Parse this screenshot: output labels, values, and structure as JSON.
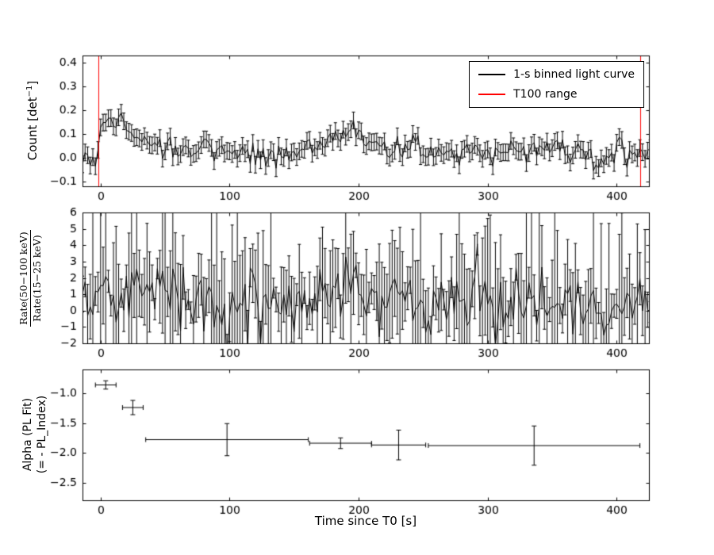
{
  "figure": {
    "background": "#ffffff",
    "frame_color": "#000000",
    "xlabel": "Time since T0 [s]",
    "xlim": [
      -14,
      425
    ],
    "xticks": [
      0,
      100,
      200,
      300,
      400
    ]
  },
  "legend": {
    "position": "upper right",
    "entries": [
      {
        "label": "1-s binned light curve",
        "color": "#000000"
      },
      {
        "label": "T100 range",
        "color": "#ff0000"
      }
    ]
  },
  "chart_data": [
    {
      "type": "line",
      "name": "light-curve",
      "ylabel_parts": [
        "Count [det",
        "−1",
        "]"
      ],
      "ylim": [
        -0.12,
        0.43
      ],
      "yticks": [
        -0.1,
        0.0,
        0.1,
        0.2,
        0.3,
        0.4
      ],
      "ytick_decimals": 1,
      "color": "#000000",
      "t100_range": [
        -2,
        418
      ],
      "t100_color": "#ff0000",
      "sample_step_s": 2,
      "x_range": [
        -16,
        428
      ],
      "yerr": 0.035,
      "noise_sigma": 0.025,
      "seed": 42,
      "trend": {
        "x": [
          -16,
          -4,
          -1,
          0,
          2,
          5,
          8,
          11,
          14,
          18,
          22,
          27,
          33,
          40,
          50,
          60,
          70,
          80,
          90,
          100,
          115,
          130,
          145,
          155,
          162,
          170,
          178,
          185,
          192,
          200,
          208,
          216,
          225,
          240,
          255,
          270,
          285,
          300,
          315,
          330,
          342,
          350,
          358,
          368,
          380,
          395,
          410,
          420,
          428
        ],
        "y": [
          0.0,
          0.0,
          0.02,
          0.1,
          0.15,
          0.16,
          0.14,
          0.16,
          0.17,
          0.13,
          0.11,
          0.09,
          0.08,
          0.06,
          0.04,
          0.03,
          0.04,
          0.05,
          0.04,
          0.02,
          0.015,
          0.01,
          0.015,
          0.03,
          0.05,
          0.06,
          0.08,
          0.09,
          0.1,
          0.09,
          0.07,
          0.06,
          0.05,
          0.04,
          0.03,
          0.03,
          0.025,
          0.02,
          0.02,
          0.02,
          0.04,
          0.05,
          0.03,
          0.02,
          0.015,
          0.02,
          0.03,
          0.02,
          0.01
        ]
      }
    },
    {
      "type": "line",
      "name": "hardness-ratio",
      "ylabel_numerator": "Rate(50−100 keV)",
      "ylabel_denominator": "Rate(15−25 keV)",
      "ylim": [
        -2,
        6
      ],
      "yticks": [
        -2,
        -1,
        0,
        1,
        2,
        3,
        4,
        5,
        6
      ],
      "ytick_decimals": 0,
      "color": "#000000",
      "sample_step_s": 2,
      "x_range": [
        -16,
        428
      ],
      "noise_sigma_base": 0.5,
      "noise_sigma_spread": 1.0,
      "yerr_base": 0.6,
      "yerr_scale": 1.8,
      "seed": 7,
      "trend": {
        "x": [
          -16,
          -5,
          0,
          5,
          10,
          20,
          30,
          45,
          60,
          80,
          100,
          120,
          140,
          160,
          175,
          185,
          195,
          210,
          230,
          260,
          300,
          340,
          380,
          410,
          428
        ],
        "y": [
          0.8,
          0.9,
          1.5,
          1.7,
          1.5,
          1.3,
          1.2,
          1.0,
          0.8,
          0.7,
          0.6,
          0.5,
          0.5,
          0.6,
          0.8,
          0.95,
          0.9,
          0.7,
          0.5,
          0.4,
          0.35,
          0.4,
          0.35,
          0.3,
          0.3
        ]
      }
    },
    {
      "type": "scatter",
      "name": "alpha-pl-index",
      "ylabel_line1": "Alpha (PL Fit)",
      "ylabel_line2": "(= - PL_Index)",
      "ylim": [
        -2.8,
        -0.6
      ],
      "yticks": [
        -2.5,
        -2.0,
        -1.5,
        -1.0
      ],
      "ytick_decimals": 1,
      "color": "#000000",
      "points": [
        {
          "x": 4,
          "xerr": 8,
          "y": -0.86,
          "yerr": 0.07
        },
        {
          "x": 25,
          "xerr": 8,
          "y": -1.24,
          "yerr": 0.12
        },
        {
          "x": 98,
          "xerr": 63,
          "y": -1.78,
          "yerr": 0.27
        },
        {
          "x": 186,
          "xerr": 24,
          "y": -1.84,
          "yerr": 0.09
        },
        {
          "x": 231,
          "xerr": 21,
          "y": -1.87,
          "yerr": 0.25
        },
        {
          "x": 336,
          "xerr": 82,
          "y": -1.88,
          "yerr": 0.33
        }
      ]
    }
  ]
}
